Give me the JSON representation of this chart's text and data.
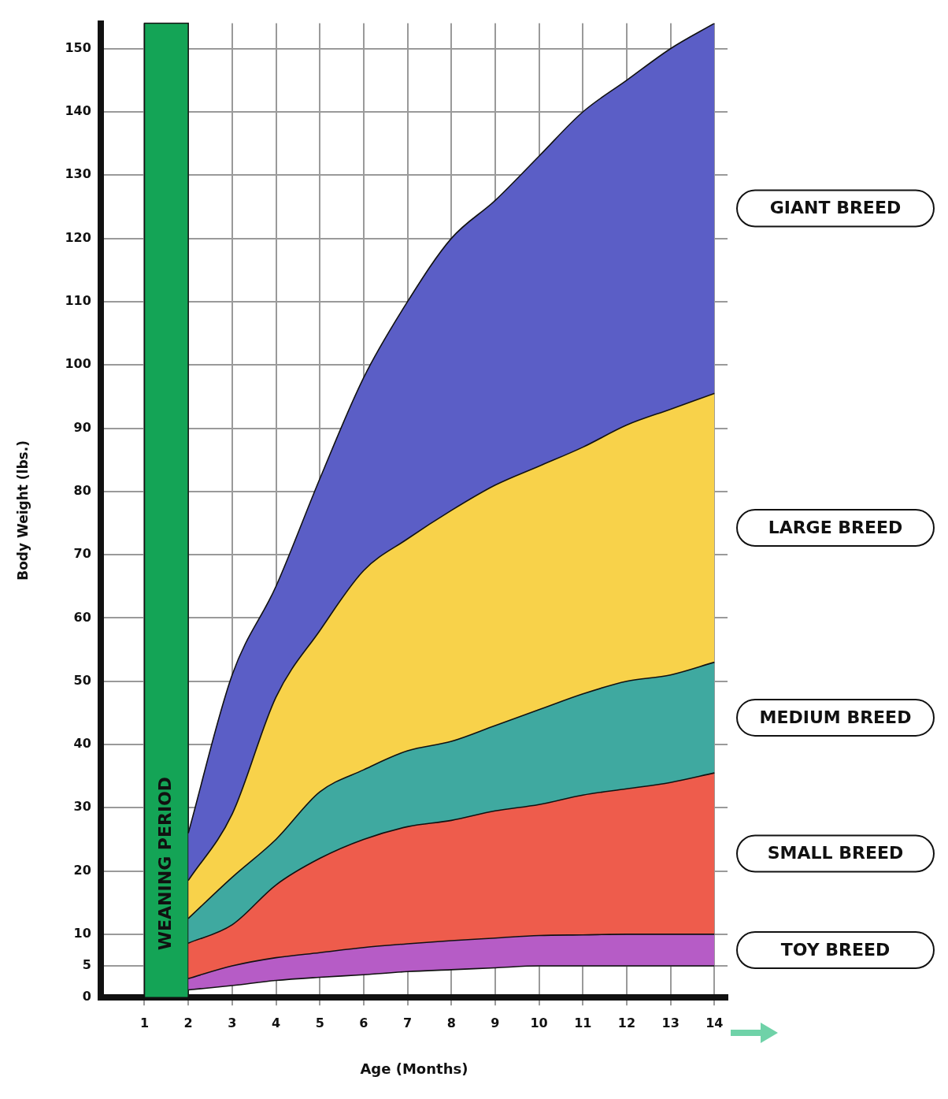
{
  "chart_data": {
    "type": "area",
    "xlabel": "Age (Months)",
    "ylabel": "Body Weight (lbs.)",
    "x": [
      2,
      3,
      4,
      5,
      6,
      7,
      8,
      9,
      10,
      11,
      12,
      13,
      14
    ],
    "series": [
      {
        "type": "line",
        "color": "#111111",
        "values": [
          1.2,
          1.9,
          2.7,
          3.2,
          3.6,
          4.1,
          4.4,
          4.7,
          5,
          5,
          5,
          5,
          5
        ]
      },
      {
        "name": "TOY BREED",
        "color": "#b65cc6",
        "values": [
          3,
          5,
          6.3,
          7.1,
          7.9,
          8.5,
          9,
          9.4,
          9.8,
          9.9,
          10,
          10,
          10
        ]
      },
      {
        "name": "SMALL BREED",
        "color": "#ee5c4c",
        "values": [
          8.6,
          11.5,
          17.8,
          22,
          25,
          27,
          28,
          29.5,
          30.5,
          32,
          33,
          34,
          35.5
        ]
      },
      {
        "name": "MEDIUM BREED",
        "color": "#3fa9a0",
        "values": [
          12.5,
          19,
          25,
          32.5,
          36,
          39,
          40.5,
          43,
          45.5,
          48,
          50,
          51,
          53
        ]
      },
      {
        "name": "LARGE BREED",
        "color": "#f8d24a",
        "values": [
          18.5,
          29,
          47.5,
          58,
          67.5,
          72.5,
          77,
          81,
          84,
          87,
          90.5,
          93,
          95.5
        ]
      },
      {
        "name": "GIANT BREED",
        "color": "#5b5ec6",
        "values": [
          26,
          51,
          65,
          82,
          98,
          110,
          120,
          126,
          133,
          140,
          145,
          150,
          154
        ]
      }
    ],
    "bands": [
      {
        "axis": "x",
        "from": 1,
        "to": 2,
        "label": "WEANING PERIOD",
        "color": "#14a456"
      }
    ],
    "xlim": [
      0,
      14.3
    ],
    "xticks": [
      1,
      2,
      3,
      4,
      5,
      6,
      7,
      8,
      9,
      10,
      11,
      12,
      13,
      14
    ],
    "ylim": [
      0,
      154
    ],
    "yticks": [
      0,
      5,
      10,
      20,
      30,
      40,
      50,
      60,
      70,
      80,
      90,
      100,
      110,
      120,
      130,
      140,
      150
    ],
    "grid": true,
    "legend": false,
    "marker": "none",
    "line_style": "solid"
  }
}
